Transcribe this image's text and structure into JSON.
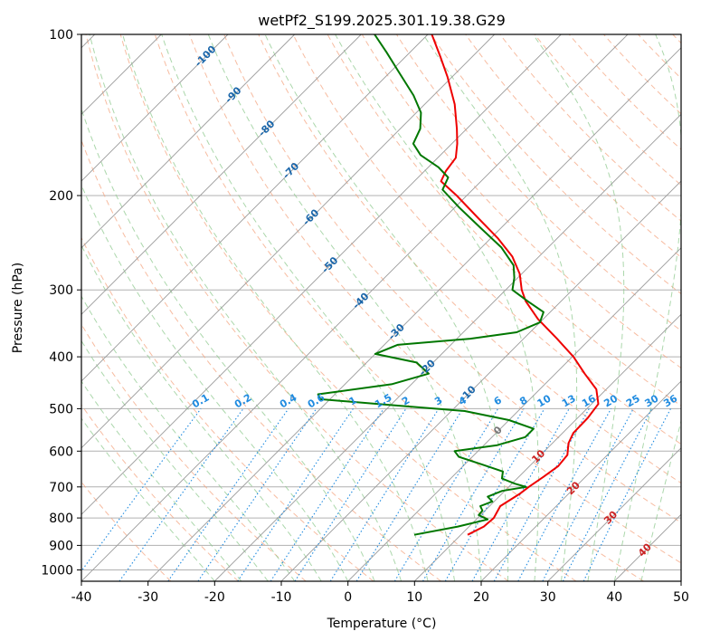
{
  "chart_data": {
    "type": "line",
    "chart_kind": "skew-T log-P sounding",
    "title": "wetPf2_S199.2025.301.19.38.G29",
    "xlabel": "Temperature (°C)",
    "ylabel": "Pressure (hPa)",
    "xlim": [
      -40,
      50
    ],
    "ylim": [
      1050,
      100
    ],
    "x_ticks": [
      -40,
      -30,
      -20,
      -10,
      0,
      10,
      20,
      30,
      40,
      50
    ],
    "y_ticks": [
      100,
      200,
      300,
      400,
      500,
      600,
      700,
      800,
      900,
      1000
    ],
    "grid": true,
    "colors": {
      "temperature": "#ee0000",
      "dewpoint": "#007700",
      "isobar_grid": "#b0b0b0",
      "isotherm": "#9a9a9a",
      "dry_adiabat": "#f4a582",
      "moist_adiabat": "#8fc98f",
      "mixing_ratio": "#1f8be0",
      "isotherm_label": "#1a66aa",
      "warm_label": "#cc2222",
      "zero_label": "#777777"
    },
    "isotherm_labels": {
      "negative": [
        "-100",
        "-90",
        "-80",
        "-70",
        "-60",
        "-50",
        "-40",
        "-30",
        "-20",
        "-10"
      ],
      "zero": "0",
      "positive": [
        "10",
        "20",
        "30",
        "40"
      ]
    },
    "mixing_ratio_labels": [
      "0.1",
      "0.2",
      "0.4",
      "0.6",
      "1",
      "1.5",
      "2",
      "3",
      "4",
      "6",
      "8",
      "10",
      "13",
      "16",
      "20",
      "25",
      "30",
      "36"
    ],
    "series": [
      {
        "name": "Temperature",
        "points": [
          {
            "p": 860,
            "t": 11.0
          },
          {
            "p": 830,
            "t": 12.2
          },
          {
            "p": 800,
            "t": 12.4
          },
          {
            "p": 760,
            "t": 11.6
          },
          {
            "p": 720,
            "t": 12.7
          },
          {
            "p": 700,
            "t": 13.0
          },
          {
            "p": 670,
            "t": 13.7
          },
          {
            "p": 640,
            "t": 14.3
          },
          {
            "p": 610,
            "t": 14.0
          },
          {
            "p": 580,
            "t": 12.4
          },
          {
            "p": 555,
            "t": 11.6
          },
          {
            "p": 520,
            "t": 11.5
          },
          {
            "p": 490,
            "t": 11.0
          },
          {
            "p": 460,
            "t": 8.5
          },
          {
            "p": 430,
            "t": 4.4
          },
          {
            "p": 400,
            "t": 0.2
          },
          {
            "p": 370,
            "t": -5.0
          },
          {
            "p": 340,
            "t": -10.8
          },
          {
            "p": 315,
            "t": -15.3
          },
          {
            "p": 300,
            "t": -17.6
          },
          {
            "p": 280,
            "t": -20.3
          },
          {
            "p": 260,
            "t": -24.0
          },
          {
            "p": 240,
            "t": -29.0
          },
          {
            "p": 220,
            "t": -35.0
          },
          {
            "p": 200,
            "t": -41.5
          },
          {
            "p": 188,
            "t": -46.0
          },
          {
            "p": 180,
            "t": -46.8
          },
          {
            "p": 170,
            "t": -47.3
          },
          {
            "p": 160,
            "t": -49.2
          },
          {
            "p": 150,
            "t": -51.5
          },
          {
            "p": 135,
            "t": -55.5
          },
          {
            "p": 120,
            "t": -60.7
          },
          {
            "p": 110,
            "t": -64.8
          },
          {
            "p": 100,
            "t": -69.4
          }
        ]
      },
      {
        "name": "Dewpoint",
        "points": [
          {
            "p": 860,
            "t": 3.0
          },
          {
            "p": 830,
            "t": 8.3
          },
          {
            "p": 805,
            "t": 11.7
          },
          {
            "p": 790,
            "t": 9.7
          },
          {
            "p": 775,
            "t": 9.6
          },
          {
            "p": 760,
            "t": 8.6
          },
          {
            "p": 745,
            "t": 9.7
          },
          {
            "p": 730,
            "t": 8.3
          },
          {
            "p": 712,
            "t": 9.6
          },
          {
            "p": 700,
            "t": 12.6
          },
          {
            "p": 690,
            "t": 10.4
          },
          {
            "p": 675,
            "t": 7.7
          },
          {
            "p": 655,
            "t": 6.8
          },
          {
            "p": 635,
            "t": 2.5
          },
          {
            "p": 615,
            "t": -2.0
          },
          {
            "p": 600,
            "t": -3.5
          },
          {
            "p": 585,
            "t": 2.0
          },
          {
            "p": 565,
            "t": 5.0
          },
          {
            "p": 545,
            "t": 5.0
          },
          {
            "p": 525,
            "t": 0.0
          },
          {
            "p": 505,
            "t": -8.0
          },
          {
            "p": 490,
            "t": -22.0
          },
          {
            "p": 480,
            "t": -31.5
          },
          {
            "p": 470,
            "t": -32.5
          },
          {
            "p": 450,
            "t": -23.0
          },
          {
            "p": 430,
            "t": -19.0
          },
          {
            "p": 410,
            "t": -22.5
          },
          {
            "p": 395,
            "t": -30.0
          },
          {
            "p": 380,
            "t": -28.0
          },
          {
            "p": 370,
            "t": -18.0
          },
          {
            "p": 360,
            "t": -12.0
          },
          {
            "p": 345,
            "t": -10.0
          },
          {
            "p": 330,
            "t": -11.0
          },
          {
            "p": 315,
            "t": -15.0
          },
          {
            "p": 300,
            "t": -19.0
          },
          {
            "p": 285,
            "t": -20.5
          },
          {
            "p": 270,
            "t": -22.5
          },
          {
            "p": 250,
            "t": -27.0
          },
          {
            "p": 230,
            "t": -33.0
          },
          {
            "p": 210,
            "t": -39.5
          },
          {
            "p": 195,
            "t": -44.5
          },
          {
            "p": 185,
            "t": -45.5
          },
          {
            "p": 177,
            "t": -48.5
          },
          {
            "p": 168,
            "t": -53.0
          },
          {
            "p": 160,
            "t": -55.8
          },
          {
            "p": 150,
            "t": -57.0
          },
          {
            "p": 140,
            "t": -59.3
          },
          {
            "p": 130,
            "t": -63.0
          },
          {
            "p": 118,
            "t": -68.5
          },
          {
            "p": 108,
            "t": -73.5
          },
          {
            "p": 100,
            "t": -78.0
          }
        ]
      }
    ]
  }
}
